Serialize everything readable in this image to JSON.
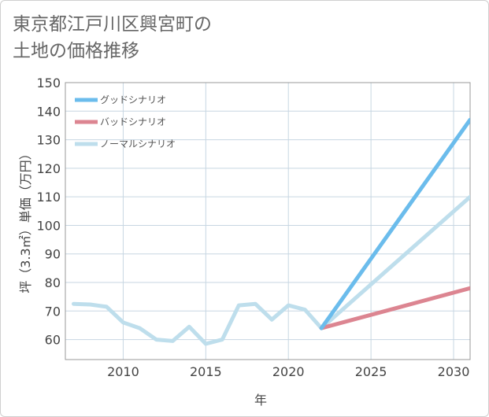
{
  "chart_data": {
    "type": "line",
    "title": [
      "東京都江戸川区興宮町の",
      "土地の価格推移"
    ],
    "xlabel": "年",
    "ylabel": "坪（3.3㎡）単価（万円）",
    "xlim": [
      2006.5,
      2031
    ],
    "ylim": [
      53,
      150
    ],
    "xticks": [
      2010,
      2015,
      2020,
      2025,
      2030
    ],
    "yticks": [
      60,
      70,
      80,
      90,
      100,
      110,
      120,
      130,
      140,
      150
    ],
    "grid": true,
    "legend_position": "top-left",
    "series": [
      {
        "name": "グッドシナリオ",
        "color": "#6bbcec",
        "points": [
          [
            2022,
            64
          ],
          [
            2031,
            137
          ]
        ]
      },
      {
        "name": "バッドシナリオ",
        "color": "#dc8591",
        "points": [
          [
            2022,
            64
          ],
          [
            2031,
            78
          ]
        ]
      },
      {
        "name": "ノーマルシナリオ",
        "color": "#bedeec",
        "points": [
          [
            2007,
            72.5
          ],
          [
            2008,
            72.3
          ],
          [
            2009,
            71.5
          ],
          [
            2010,
            66
          ],
          [
            2011,
            64
          ],
          [
            2012,
            60
          ],
          [
            2013,
            59.5
          ],
          [
            2014,
            64.5
          ],
          [
            2015,
            58.5
          ],
          [
            2016,
            60
          ],
          [
            2017,
            72
          ],
          [
            2018,
            72.5
          ],
          [
            2019,
            67
          ],
          [
            2020,
            72
          ],
          [
            2021,
            70.5
          ],
          [
            2022,
            64
          ],
          [
            2031,
            110
          ]
        ]
      }
    ]
  }
}
